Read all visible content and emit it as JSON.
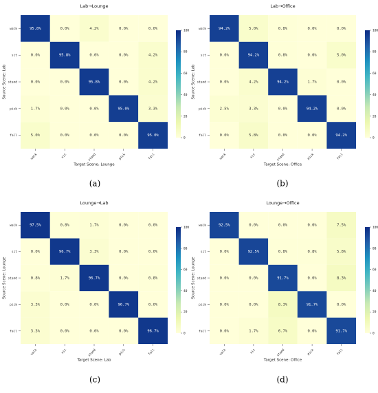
{
  "colors": {
    "low": "#ffffd9",
    "mid1": "#edf8b1",
    "mid2": "#c7e9b4",
    "mid3": "#7fcdbb",
    "mid4": "#41b6c4",
    "mid5": "#1d91c0",
    "mid6": "#225ea8",
    "high": "#0c2c84"
  },
  "chart_data": [
    {
      "type": "heatmap",
      "panel_label": "(a)",
      "title": "Lab→Lounge",
      "xlabel": "Target Scene: Lounge",
      "ylabel": "Source Scene: Lab",
      "categories": [
        "walk",
        "sit",
        "stand",
        "pick",
        "fall"
      ],
      "values": [
        [
          95.8,
          0.0,
          4.2,
          0.0,
          0.0
        ],
        [
          0.0,
          95.8,
          0.0,
          0.0,
          4.2
        ],
        [
          0.0,
          0.0,
          95.8,
          0.0,
          4.2
        ],
        [
          1.7,
          0.0,
          0.0,
          95.0,
          3.3
        ],
        [
          5.0,
          0.0,
          0.0,
          0.0,
          95.0
        ]
      ],
      "colorbar_ticks": [
        0,
        20,
        40,
        60,
        80,
        100
      ],
      "vmin": 0,
      "vmax": 100
    },
    {
      "type": "heatmap",
      "panel_label": "(b)",
      "title": "Lab→Office",
      "xlabel": "Target Scene: Office",
      "ylabel": "Source Scene: Lab",
      "categories": [
        "walk",
        "sit",
        "stand",
        "pick",
        "fall"
      ],
      "values": [
        [
          94.2,
          5.0,
          0.8,
          0.0,
          0.0
        ],
        [
          0.0,
          94.2,
          0.8,
          0.0,
          5.0
        ],
        [
          0.0,
          4.2,
          94.2,
          1.7,
          0.0
        ],
        [
          2.5,
          3.3,
          0.0,
          94.2,
          0.0
        ],
        [
          0.0,
          5.8,
          0.0,
          0.0,
          94.2
        ]
      ],
      "colorbar_ticks": [
        0,
        20,
        40,
        60,
        80,
        100
      ],
      "vmin": 0,
      "vmax": 100
    },
    {
      "type": "heatmap",
      "panel_label": "(c)",
      "title": "Lounge→Lab",
      "xlabel": "Target Scene: Lab",
      "ylabel": "Source Scene: Lounge",
      "categories": [
        "walk",
        "sit",
        "stand",
        "pick",
        "fall"
      ],
      "values": [
        [
          97.5,
          0.8,
          1.7,
          0.0,
          0.0
        ],
        [
          0.0,
          96.7,
          3.3,
          0.0,
          0.0
        ],
        [
          0.8,
          1.7,
          96.7,
          0.0,
          0.8
        ],
        [
          3.3,
          0.0,
          0.0,
          96.7,
          0.0
        ],
        [
          3.3,
          0.0,
          0.0,
          0.0,
          96.7
        ]
      ],
      "colorbar_ticks": [
        0,
        20,
        40,
        60,
        80,
        100
      ],
      "vmin": 0,
      "vmax": 100
    },
    {
      "type": "heatmap",
      "panel_label": "(d)",
      "title": "Lounge→Office",
      "xlabel": "Target Scene: Office",
      "ylabel": "Source Scene: Lounge",
      "categories": [
        "walk",
        "sit",
        "stand",
        "pick",
        "fall"
      ],
      "values": [
        [
          92.5,
          0.0,
          0.0,
          0.0,
          7.5
        ],
        [
          0.0,
          92.5,
          0.8,
          0.8,
          5.8
        ],
        [
          0.0,
          0.0,
          91.7,
          0.0,
          8.3
        ],
        [
          0.0,
          0.0,
          8.3,
          91.7,
          0.0
        ],
        [
          0.0,
          1.7,
          6.7,
          0.0,
          91.7
        ]
      ],
      "colorbar_ticks": [
        0,
        20,
        40,
        60,
        80,
        100
      ],
      "vmin": 0,
      "vmax": 100
    }
  ]
}
